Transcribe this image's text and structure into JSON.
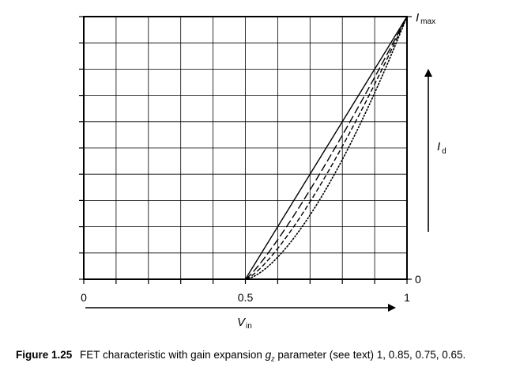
{
  "chart_data": {
    "type": "line",
    "x_tick_labels": [
      "0",
      "0.5",
      "1"
    ],
    "xlim": [
      0,
      1
    ],
    "ylim": [
      0,
      1
    ],
    "y_bottom_label": "0",
    "y_top_label": {
      "main": "I",
      "sub": "max"
    },
    "y_axis_arrow_label": {
      "main": "I",
      "sub": "d"
    },
    "x_axis_arrow_label": {
      "main": "V",
      "sub": "in"
    },
    "grid": true,
    "x_grid_divisions": 10,
    "y_grid_divisions": 10,
    "threshold_x": 0.5,
    "series": [
      {
        "gz": 1,
        "style": "solid"
      },
      {
        "gz": 0.85,
        "style": "long-dash"
      },
      {
        "gz": 0.75,
        "style": "short-dash"
      },
      {
        "gz": 0.65,
        "style": "dotted"
      }
    ]
  },
  "caption": {
    "figure_label": "Figure 1.25",
    "text_before": "FET characteristic with gain expansion ",
    "param_main": "g",
    "param_sub": "z",
    "text_after": " parameter (see text) 1, 0.85, 0.75, 0.65."
  }
}
